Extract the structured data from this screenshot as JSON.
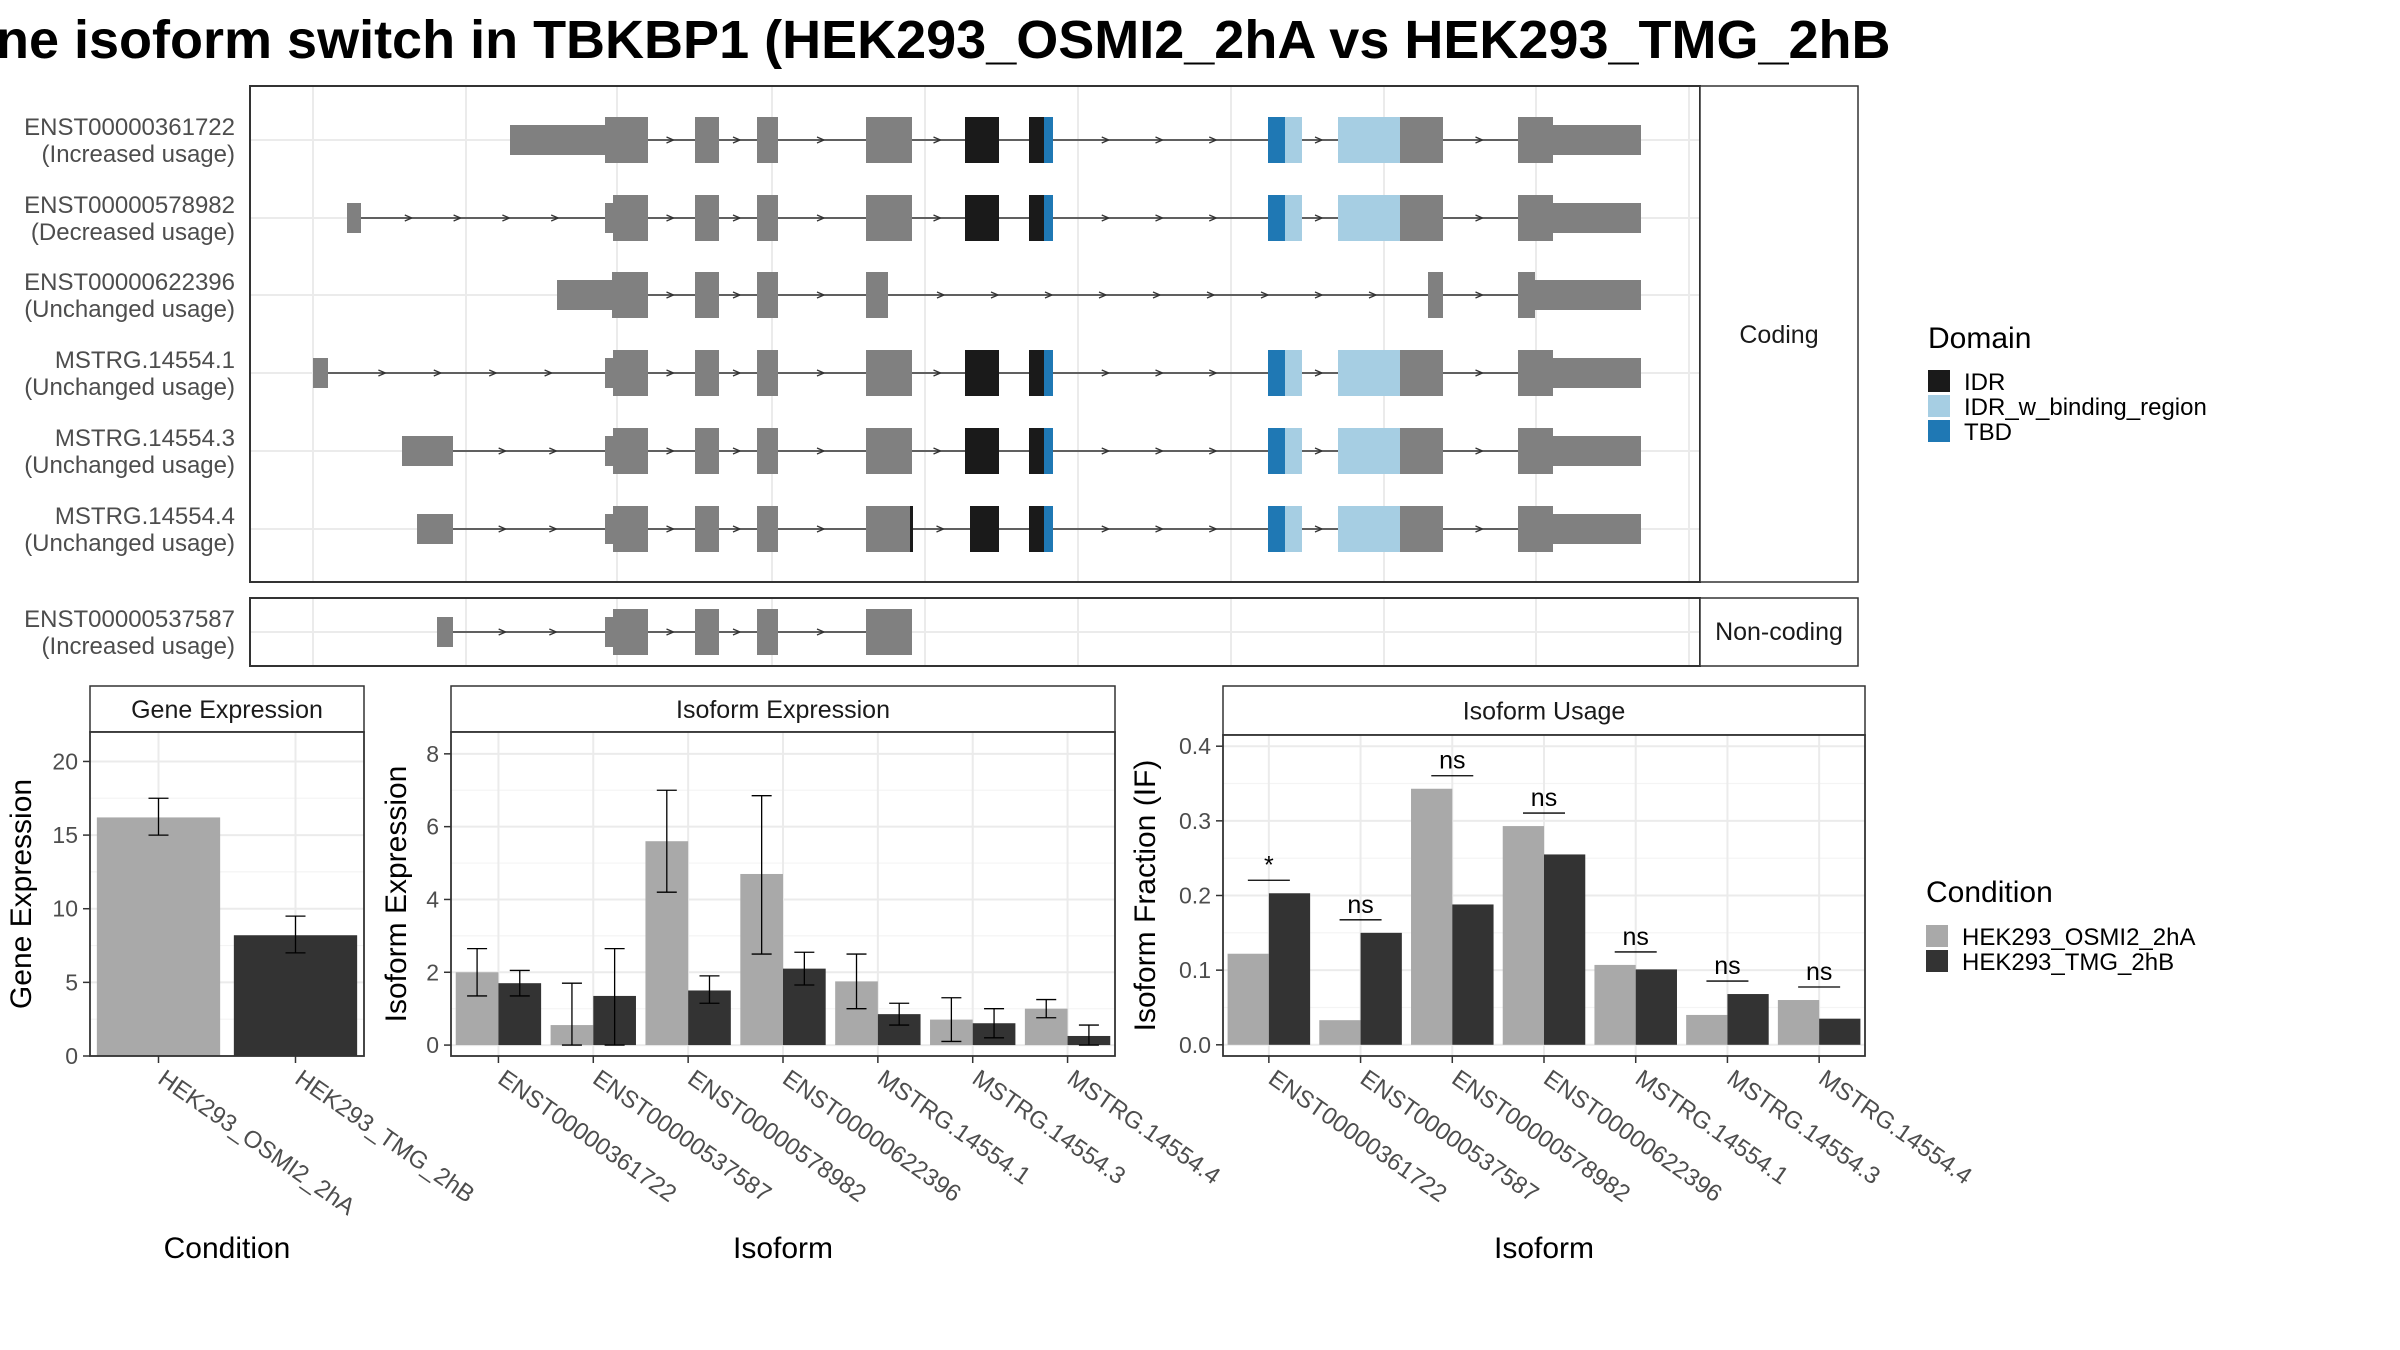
{
  "title": "ne isoform switch in TBKBP1 (HEK293_OSMI2_2hA vs HEK293_TMG_2hB",
  "transcripts": {
    "coding_label": "Coding",
    "noncoding_label": "Non-coding",
    "coding": [
      {
        "id": "ENST00000361722",
        "usage": "(Increased usage)",
        "structure": "full"
      },
      {
        "id": "ENST00000578982",
        "usage": "(Decreased usage)",
        "structure": "full_first_small"
      },
      {
        "id": "ENST00000622396",
        "usage": "(Unchanged usage)",
        "structure": "short"
      },
      {
        "id": "MSTRG.14554.1",
        "usage": "(Unchanged usage)",
        "structure": "full_first_far"
      },
      {
        "id": "MSTRG.14554.3",
        "usage": "(Unchanged usage)",
        "structure": "full_first_block"
      },
      {
        "id": "MSTRG.14554.4",
        "usage": "(Unchanged usage)",
        "structure": "full_alt"
      }
    ],
    "noncoding": [
      {
        "id": "ENST00000537587",
        "usage": "(Increased usage)",
        "structure": "noncoding"
      }
    ]
  },
  "domain_legend": {
    "title": "Domain",
    "items": [
      {
        "label": "IDR",
        "color": "#1a1a1a"
      },
      {
        "label": "IDR_w_binding_region",
        "color": "#a6cee3"
      },
      {
        "label": "TBD",
        "color": "#1f78b4"
      }
    ]
  },
  "condition_legend": {
    "title": "Condition",
    "items": [
      {
        "label": "HEK293_OSMI2_2hA",
        "color": "#a9a9a9"
      },
      {
        "label": "HEK293_TMG_2hB",
        "color": "#333333"
      }
    ]
  },
  "chart_data": [
    {
      "type": "bar",
      "title": "Gene Expression",
      "xlabel": "Condition",
      "ylabel": "Gene Expression",
      "categories": [
        "HEK293_OSMI2_2hA",
        "HEK293_TMG_2hB"
      ],
      "values": [
        16.2,
        8.2
      ],
      "errors": [
        [
          15.0,
          17.5
        ],
        [
          7.0,
          9.5
        ]
      ],
      "ylim": [
        0,
        22
      ],
      "yticks": [
        0,
        5,
        10,
        15,
        20
      ]
    },
    {
      "type": "bar",
      "title": "Isoform Expression",
      "xlabel": "Isoform",
      "ylabel": "Isoform Expression",
      "categories": [
        "ENST00000361722",
        "ENST00000537587",
        "ENST00000578982",
        "ENST00000622396",
        "MSTRG.14554.1",
        "MSTRG.14554.3",
        "MSTRG.14554.4"
      ],
      "series": [
        {
          "name": "HEK293_OSMI2_2hA",
          "values": [
            2.0,
            0.55,
            5.6,
            4.7,
            1.75,
            0.7,
            1.0
          ],
          "errors": [
            [
              1.35,
              2.65
            ],
            [
              0,
              1.7
            ],
            [
              4.2,
              7.0
            ],
            [
              2.5,
              6.85
            ],
            [
              1.0,
              2.5
            ],
            [
              0.1,
              1.3
            ],
            [
              0.75,
              1.25
            ]
          ]
        },
        {
          "name": "HEK293_TMG_2hB",
          "values": [
            1.7,
            1.35,
            1.5,
            2.1,
            0.85,
            0.6,
            0.25
          ],
          "errors": [
            [
              1.35,
              2.05
            ],
            [
              0,
              2.65
            ],
            [
              1.15,
              1.9
            ],
            [
              1.65,
              2.55
            ],
            [
              0.55,
              1.15
            ],
            [
              0.2,
              1.0
            ],
            [
              0,
              0.55
            ]
          ]
        }
      ],
      "ylim": [
        -0.3,
        8.6
      ],
      "yticks": [
        0,
        2,
        4,
        6,
        8
      ]
    },
    {
      "type": "bar",
      "title": "Isoform Usage",
      "xlabel": "Isoform",
      "ylabel": "Isoform Fraction (IF)",
      "categories": [
        "ENST00000361722",
        "ENST00000537587",
        "ENST00000578982",
        "ENST00000622396",
        "MSTRG.14554.1",
        "MSTRG.14554.3",
        "MSTRG.14554.4"
      ],
      "series": [
        {
          "name": "HEK293_OSMI2_2hA",
          "values": [
            0.122,
            0.033,
            0.343,
            0.293,
            0.107,
            0.04,
            0.06
          ]
        },
        {
          "name": "HEK293_TMG_2hB",
          "values": [
            0.203,
            0.15,
            0.188,
            0.255,
            0.101,
            0.068,
            0.035
          ]
        }
      ],
      "significance": [
        "*",
        "ns",
        "ns",
        "ns",
        "ns",
        "ns",
        "ns"
      ],
      "ylim": [
        -0.015,
        0.415
      ],
      "yticks": [
        "0.0",
        "0.1",
        "0.2",
        "0.3",
        "0.4"
      ]
    }
  ]
}
